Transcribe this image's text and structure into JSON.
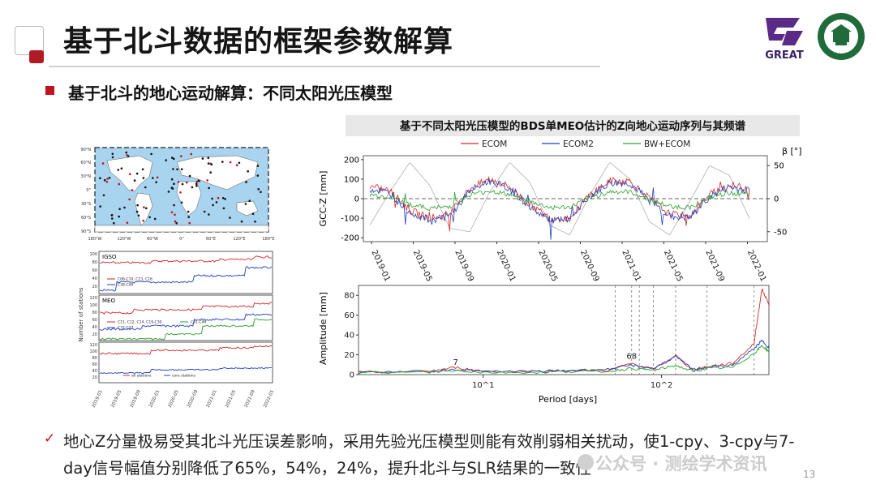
{
  "slide": {
    "title": "基于北斗数据的框架参数解算",
    "subtitle": "基于北斗的地心运动解算：不同太阳光压模型",
    "logo_text": "GREAT",
    "page_number": "13",
    "watermark": "公众号 · 测绘学术资讯",
    "conclusion_line1": "地心Z分量极易受其北斗光压误差影响，采用先验光压模型则能有效削弱相关扰动，使1-cpy、3-cpy与7-",
    "conclusion_line2": "day信号幅值分别降低了65%，54%，24%，提升北斗与SLR结果的一致性"
  },
  "map": {
    "lat_labels": [
      "90°N",
      "60°N",
      "30°N",
      "0°",
      "30°S",
      "60°S",
      "90°S"
    ],
    "lon_labels": [
      "180°W",
      "120°W",
      "60°W",
      "0°",
      "60°E",
      "120°E",
      "180°E"
    ]
  },
  "stations_chart": {
    "ylabel": "Number of stations",
    "x_ticks": [
      "2019-01",
      "2019-05",
      "2019-09",
      "2020-01",
      "2020-05",
      "2020-09",
      "2021-01",
      "2021-05",
      "2021-09",
      "2022-01"
    ],
    "panels": [
      {
        "label": "IGSO",
        "yticks": [
          "100",
          "80",
          "60",
          "40",
          "20"
        ],
        "legend": [
          "C06-C10, C13, C16",
          "C38-C40"
        ]
      },
      {
        "label": "MEO",
        "yticks": [
          "120",
          "100",
          "80",
          "60",
          "40",
          "20"
        ],
        "legend": [
          "C11, C12, C14, C19-C30",
          "C32-C37",
          "C41-C46"
        ]
      },
      {
        "label": "",
        "yticks": [
          "120",
          "100",
          "80",
          "60",
          "40",
          "20"
        ],
        "legend": [
          "all stations",
          "core stations"
        ]
      }
    ]
  },
  "chart_data": [
    {
      "type": "line",
      "title": "基于不同太阳光压模型的BDS单MEO估计的Z向地心运动序列与其频谱",
      "ylabel": "GCC-Z [mm]",
      "y2label": "β [°]",
      "ylim": [
        -220,
        220
      ],
      "y_ticks": [
        -200,
        -100,
        0,
        100,
        200
      ],
      "y2lim": [
        -65,
        65
      ],
      "y2_ticks": [
        -50,
        0,
        50
      ],
      "x_ticks": [
        "2019-01",
        "2019-05",
        "2019-09",
        "2020-01",
        "2020-05",
        "2020-09",
        "2021-01",
        "2021-05",
        "2021-09",
        "2022-01"
      ],
      "legend": [
        "ECOM",
        "ECOM2",
        "BW+ECOM"
      ],
      "colors": [
        "#d62728",
        "#1f3fbf",
        "#2ca02c",
        "#b0b0b0"
      ],
      "series": [
        {
          "name": "ECOM",
          "values": [
            60,
            40,
            -60,
            -100,
            -80,
            50,
            100,
            60,
            -30,
            -100,
            -100,
            20,
            90,
            90,
            0,
            -80,
            -90,
            20,
            70,
            50
          ]
        },
        {
          "name": "ECOM2",
          "values": [
            50,
            30,
            -70,
            -110,
            -90,
            40,
            90,
            50,
            -40,
            -110,
            -110,
            10,
            80,
            80,
            -10,
            -90,
            -100,
            10,
            60,
            40
          ]
        },
        {
          "name": "BW+ECOM",
          "values": [
            20,
            10,
            -30,
            -50,
            -40,
            20,
            40,
            20,
            -15,
            -45,
            -45,
            5,
            35,
            35,
            -5,
            -40,
            -45,
            5,
            30,
            20
          ]
        }
      ],
      "beta_series": {
        "name": "β",
        "values": [
          -40,
          10,
          55,
          20,
          -45,
          -50,
          10,
          55,
          25,
          -40,
          -55,
          5,
          55,
          30,
          -35,
          -55,
          -5,
          50,
          35,
          -30
        ]
      }
    },
    {
      "type": "line",
      "xlabel": "Period [days]",
      "ylabel": "Amplitude [mm]",
      "xscale": "log",
      "xlim": [
        2,
        400
      ],
      "ylim": [
        0,
        90
      ],
      "y_ticks": [
        0,
        20,
        40,
        60,
        80
      ],
      "x_tick_labels": [
        "10^1",
        "10^2"
      ],
      "annotations": [
        "7",
        "68"
      ],
      "annotation_periods": [
        7,
        68
      ],
      "vlines": [
        55,
        68,
        75,
        90,
        120,
        180,
        330
      ],
      "series": [
        {
          "name": "ECOM",
          "x": [
            2,
            5,
            7,
            10,
            20,
            30,
            50,
            68,
            90,
            120,
            150,
            180,
            250,
            330,
            365,
            400
          ],
          "values": [
            1,
            2,
            6,
            2,
            2,
            3,
            3,
            10,
            4,
            18,
            3,
            7,
            10,
            30,
            85,
            70
          ]
        },
        {
          "name": "ECOM2",
          "x": [
            2,
            5,
            7,
            10,
            20,
            30,
            50,
            68,
            90,
            120,
            150,
            180,
            250,
            330,
            365,
            400
          ],
          "values": [
            1,
            2,
            4,
            2,
            2,
            3,
            4,
            8,
            5,
            17,
            4,
            6,
            8,
            25,
            33,
            26
          ]
        },
        {
          "name": "BW+ECOM",
          "x": [
            2,
            5,
            7,
            10,
            20,
            30,
            50,
            68,
            90,
            120,
            150,
            180,
            250,
            330,
            365,
            400
          ],
          "values": [
            1,
            1,
            3,
            1,
            1,
            2,
            2,
            5,
            3,
            8,
            2,
            5,
            6,
            20,
            28,
            22
          ]
        }
      ]
    }
  ]
}
